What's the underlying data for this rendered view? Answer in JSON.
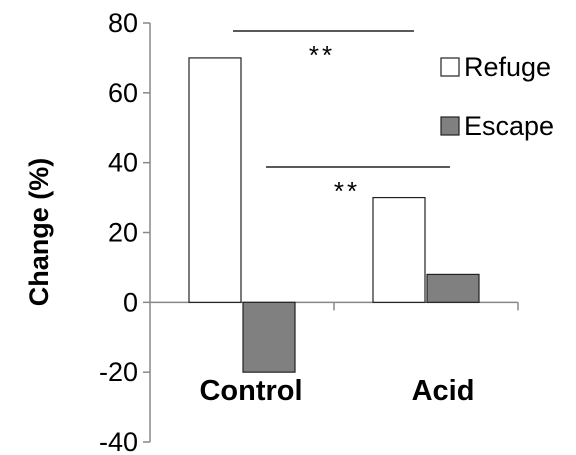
{
  "chart_data": {
    "type": "bar",
    "ylabel": "Change (%)",
    "categories": [
      "Control",
      "Acid"
    ],
    "series": [
      {
        "name": "Refuge",
        "values": [
          70,
          30
        ],
        "color": "#ffffff"
      },
      {
        "name": "Escape",
        "values": [
          -20,
          8
        ],
        "color": "#808080"
      }
    ],
    "ylim": [
      -40,
      80
    ],
    "yticks": [
      "-40",
      "-20",
      "0",
      "20",
      "40",
      "60",
      "80"
    ],
    "legend_position": "top-right",
    "grid": false,
    "annotations": [
      {
        "text": "**",
        "brackets": "Control Refuge to Acid Refuge"
      },
      {
        "text": "**",
        "brackets": "Control Escape to Acid Escape"
      }
    ]
  }
}
